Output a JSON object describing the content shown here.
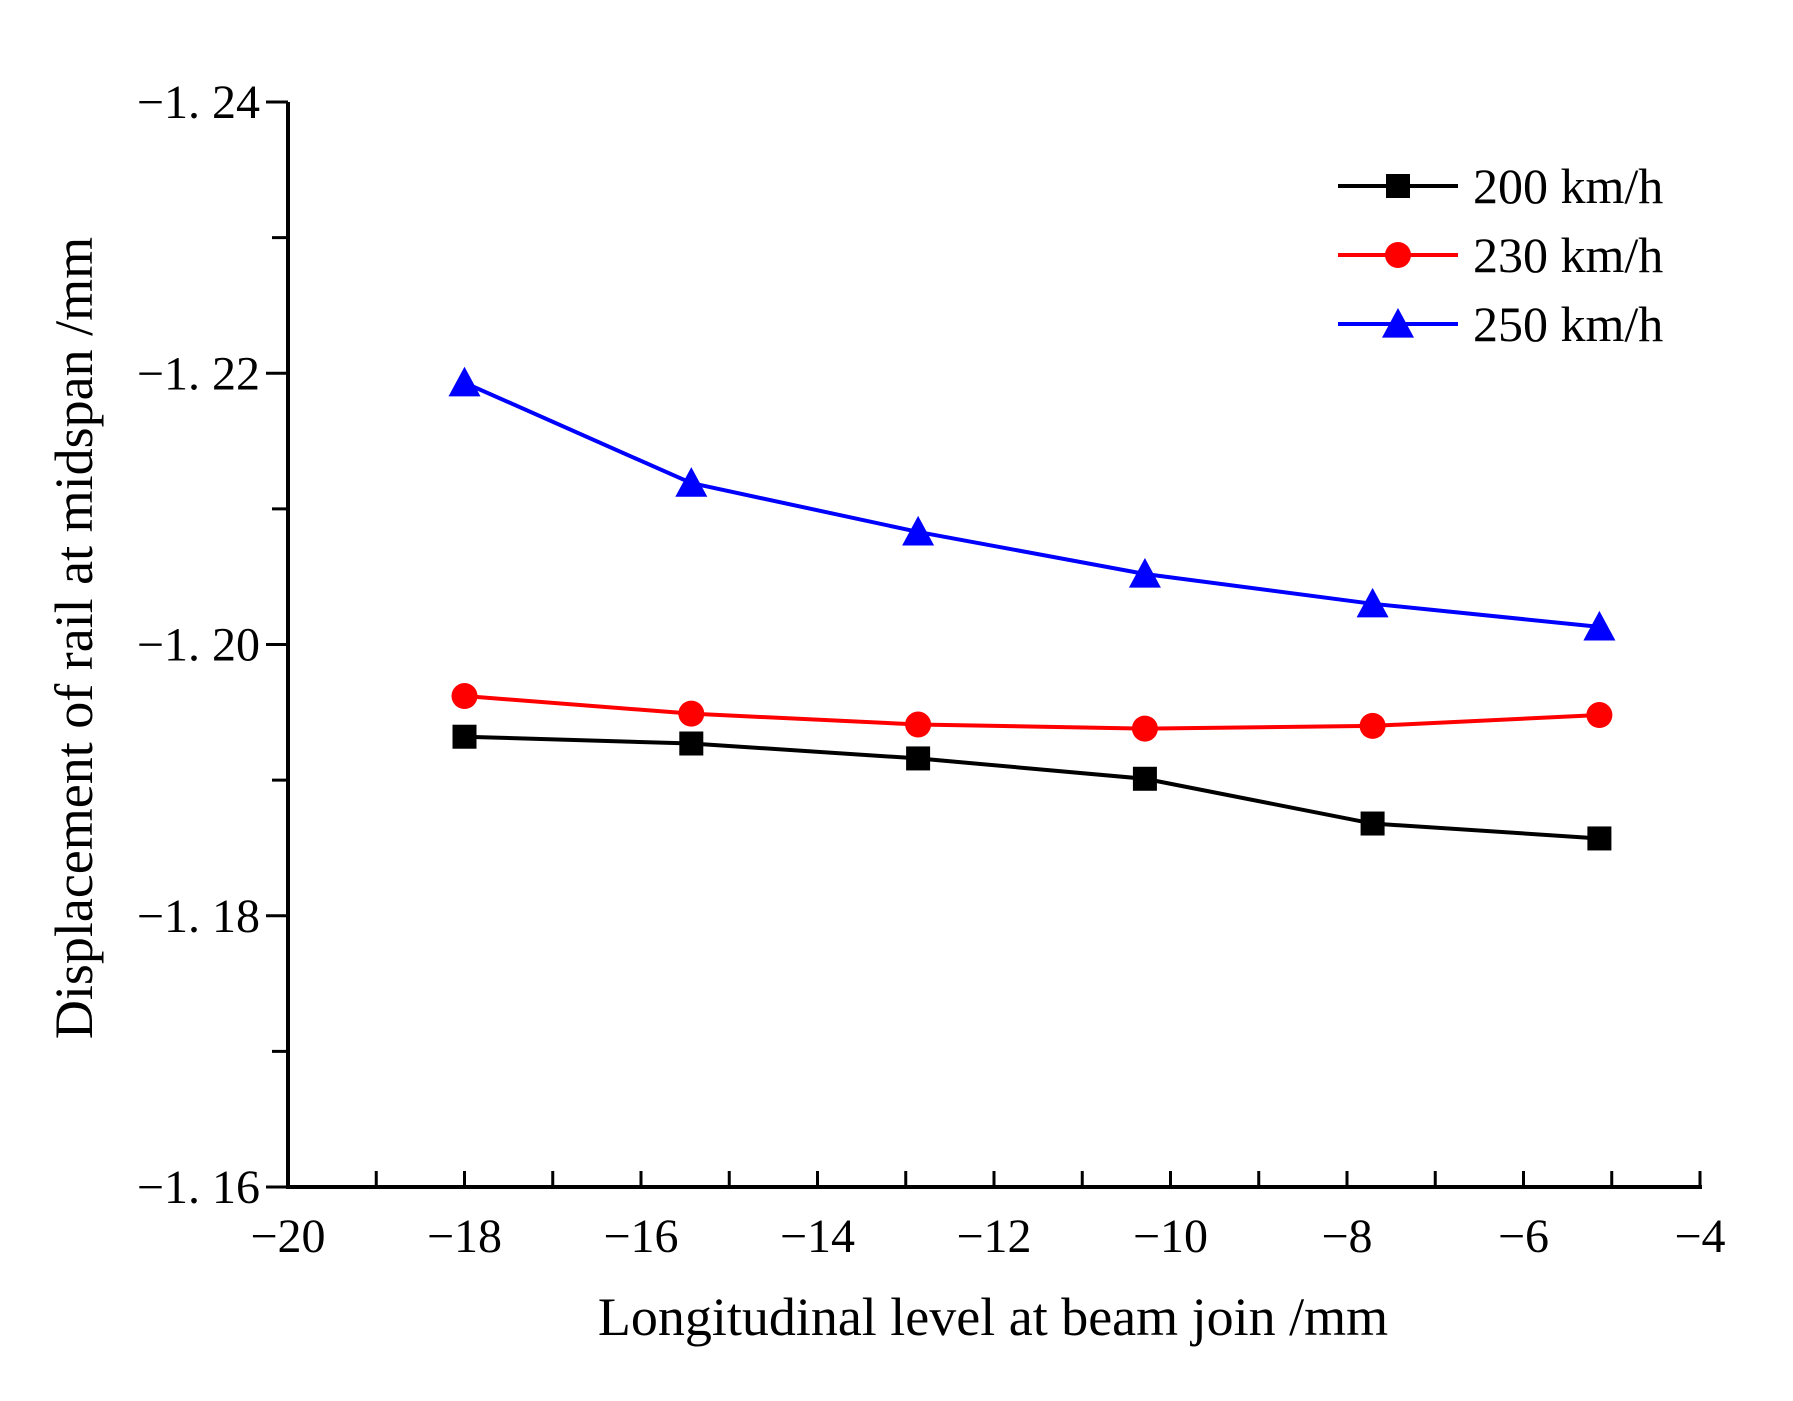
{
  "chart_data": {
    "type": "line",
    "title": "",
    "xlabel": "Longitudinal level at beam join /mm",
    "ylabel": "Displacement of rail at midspan /mm",
    "xlim": [
      -20,
      -4
    ],
    "ylim": [
      -1.16,
      -1.24
    ],
    "x_ticks": [
      -20,
      -18,
      -16,
      -14,
      -12,
      -10,
      -8,
      -6,
      -4
    ],
    "x_tick_labels": [
      "−20",
      "−18",
      "−16",
      "−14",
      "−12",
      "−10",
      "−8",
      "−6",
      "−4"
    ],
    "y_ticks": [
      -1.16,
      -1.18,
      -1.2,
      -1.22,
      -1.24
    ],
    "y_tick_labels": [
      "−1. 16",
      "−1. 18",
      "−1. 20",
      "−1. 22",
      "−1. 24"
    ],
    "grid": false,
    "legend_position": "top-right",
    "x": [
      -18.0,
      -15.43,
      -12.86,
      -10.29,
      -7.71,
      -5.14
    ],
    "series": [
      {
        "name": "200 km/h",
        "color": "#000000",
        "marker": "square",
        "values": [
          -1.1932,
          -1.1927,
          -1.1916,
          -1.1901,
          -1.1868,
          -1.1857
        ]
      },
      {
        "name": "230 km/h",
        "color": "#ff0000",
        "marker": "circle",
        "values": [
          -1.1962,
          -1.1949,
          -1.1941,
          -1.1938,
          -1.194,
          -1.1948
        ]
      },
      {
        "name": "250 km/h",
        "color": "#0000ff",
        "marker": "triangle",
        "values": [
          -1.2193,
          -1.2119,
          -1.2083,
          -1.2052,
          -1.203,
          -1.2013
        ]
      }
    ]
  }
}
